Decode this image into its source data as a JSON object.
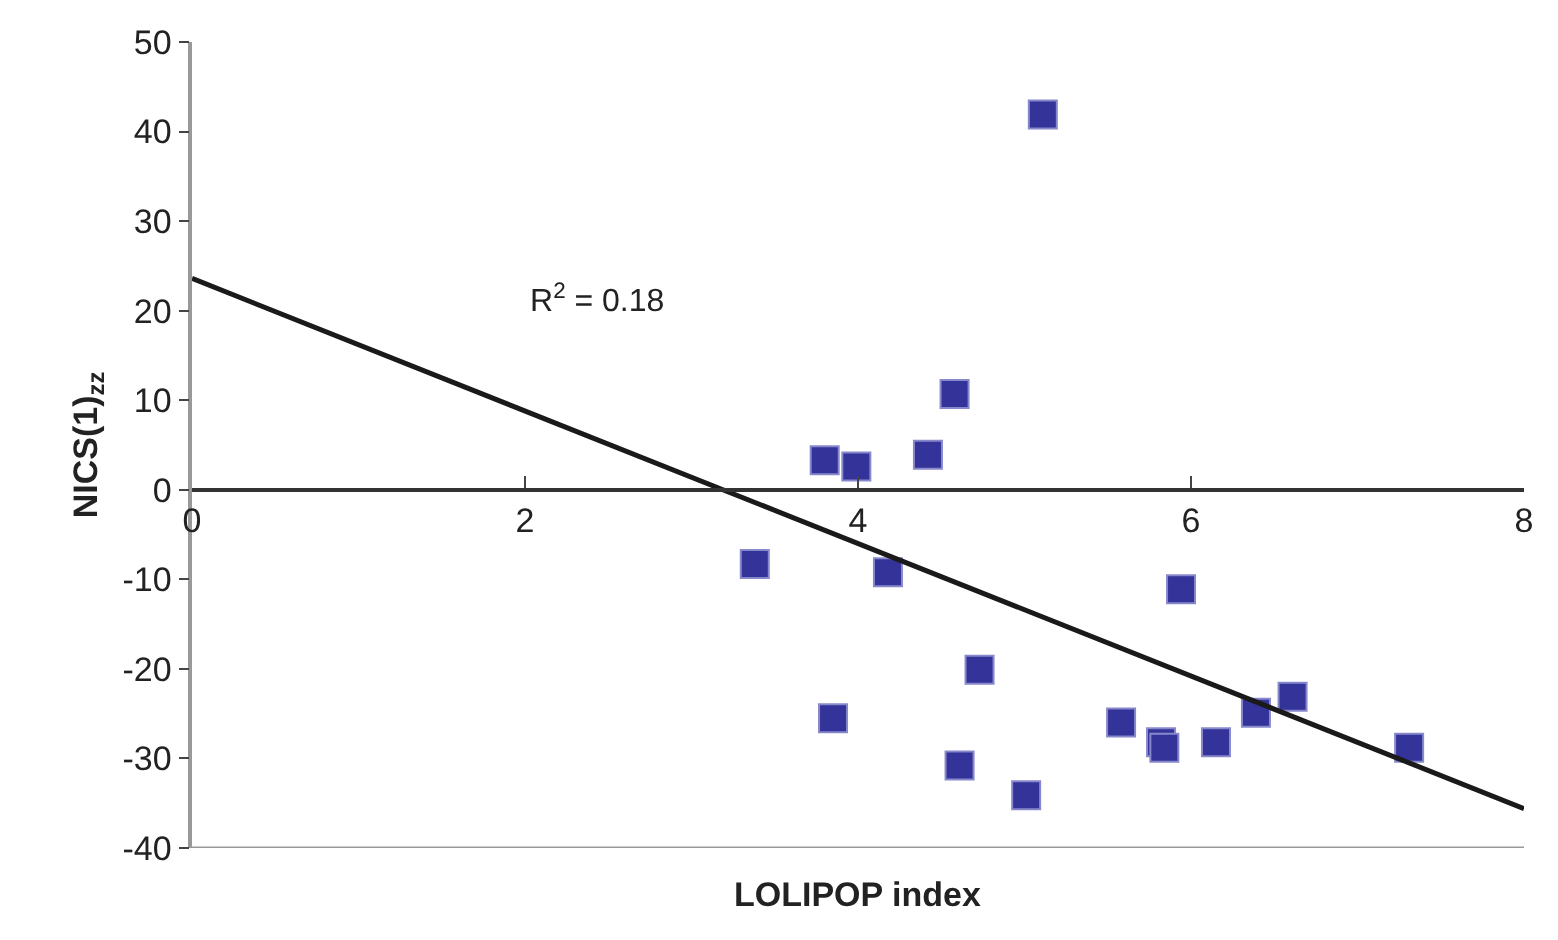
{
  "chart_data": {
    "type": "scatter",
    "xlabel": "LOLIPOP index",
    "ylabel": "NICS(1)$_{zz}$",
    "annotations": [
      "R$^{2}$ = 0.18"
    ],
    "series": [
      {
        "color": "#333399",
        "marker": "square",
        "x": [
          3.38,
          3.8,
          3.99,
          3.85,
          4.18,
          4.42,
          4.58,
          4.61,
          4.73,
          5.01,
          5.11,
          5.58,
          5.82,
          5.84,
          5.94,
          6.15,
          6.39,
          6.61,
          7.31
        ],
        "values": [
          -8.3,
          3.3,
          2.6,
          -25.5,
          -9.2,
          3.9,
          10.7,
          -30.8,
          -20.1,
          -34.1,
          41.9,
          -26.0,
          -28.2,
          -28.8,
          -11.1,
          -28.2,
          -24.9,
          -23.1,
          -28.8
        ]
      },
      {
        "type": "line",
        "color": "#1a1a1a",
        "line_style": "solid",
        "x": [
          0,
          8
        ],
        "values": [
          23.6,
          -35.6
        ]
      }
    ],
    "xlim": [
      0,
      8
    ],
    "xticks": [
      0,
      2,
      4,
      6,
      8
    ],
    "ylim": [
      -40,
      50
    ],
    "yticks": [
      -40,
      -30,
      -20,
      -10,
      0,
      10,
      20,
      30,
      40,
      50
    ],
    "grid": false,
    "legend": false
  }
}
